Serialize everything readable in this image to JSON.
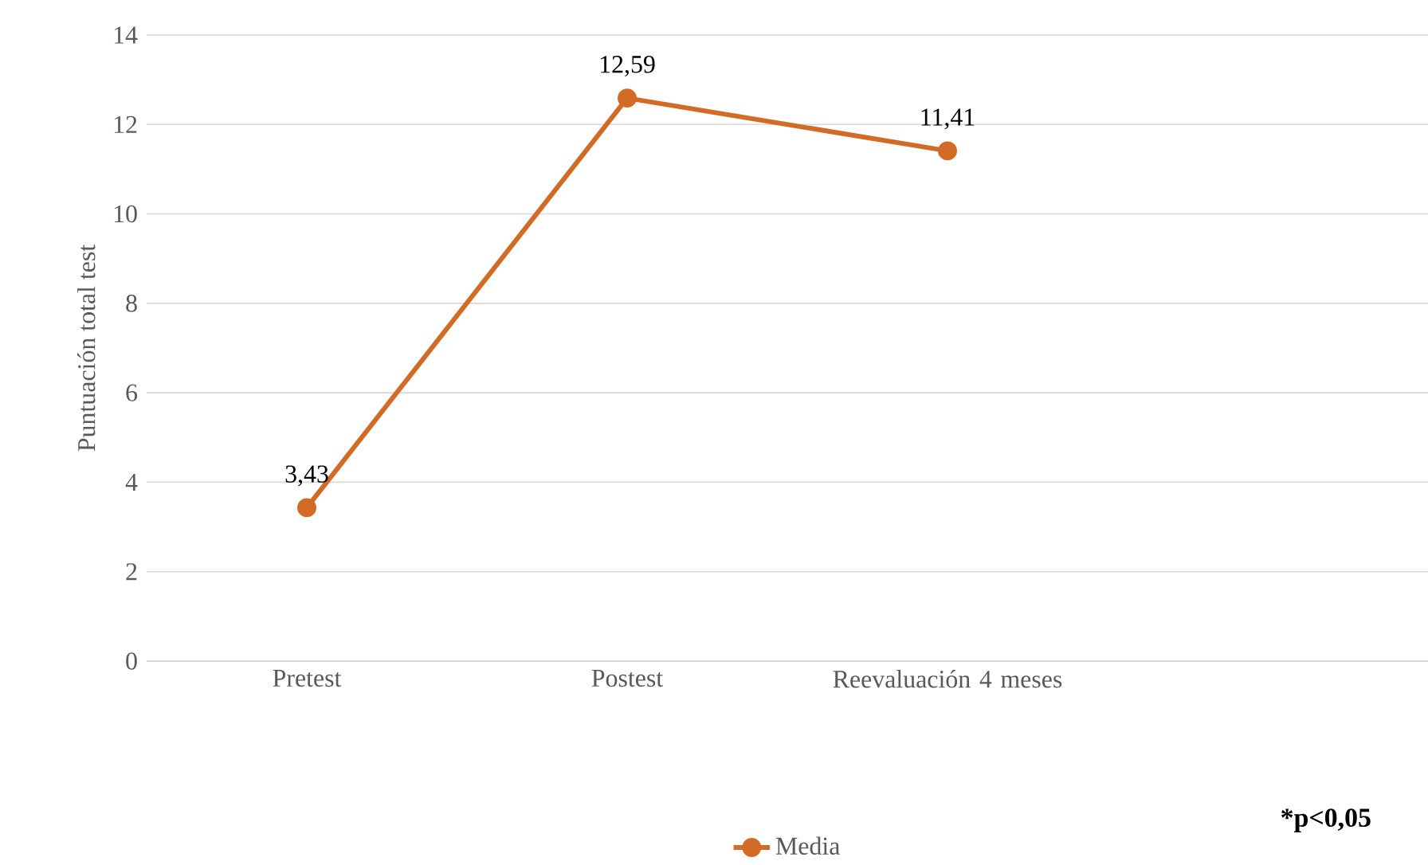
{
  "chart_data": {
    "type": "line",
    "ylabel": "Puntuación total test",
    "categories": [
      "Pretest",
      "Postest",
      "Reevaluación 4 meses",
      null
    ],
    "series": [
      {
        "name": "Media",
        "color": "#d26b26",
        "values": [
          3.43,
          12.59,
          11.41,
          null
        ],
        "value_labels": [
          "3,43",
          "12,59",
          "11,41",
          null
        ]
      }
    ],
    "ylim": [
      0,
      14
    ],
    "yticks": [
      0,
      2,
      4,
      6,
      8,
      10,
      12,
      14
    ],
    "grid": "y",
    "legend": "bottom",
    "marker": "circle",
    "line_style": "solid",
    "annotations": [
      "*p<0,05"
    ]
  }
}
